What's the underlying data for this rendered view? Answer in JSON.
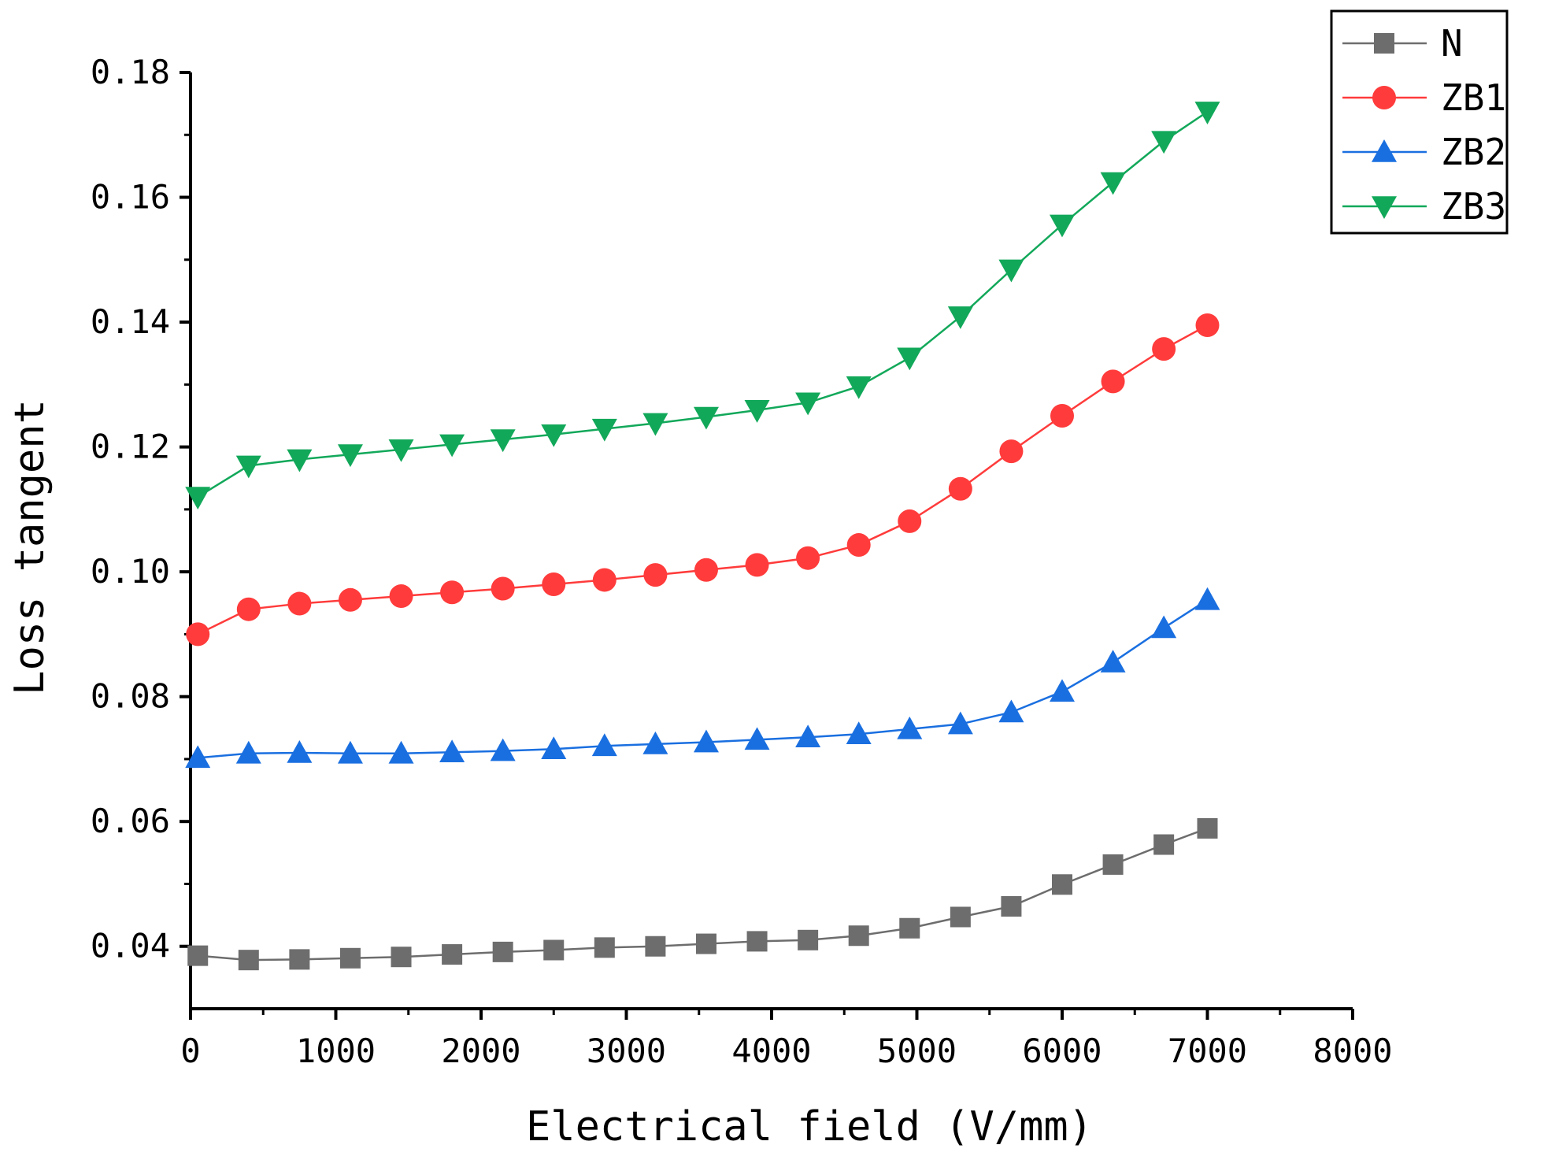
{
  "chart_data": {
    "type": "line",
    "title": "",
    "xlabel": "Electrical field (V/mm)",
    "ylabel": "Loss tangent",
    "xlim": [
      0,
      8000
    ],
    "ylim": [
      0.03,
      0.18
    ],
    "xticks": [
      0,
      1000,
      2000,
      3000,
      4000,
      5000,
      6000,
      7000,
      8000
    ],
    "xtick_labels": [
      "0",
      "1000",
      "2000",
      "3000",
      "4000",
      "5000",
      "6000",
      "7000",
      "8000"
    ],
    "yticks": [
      0.04,
      0.06,
      0.08,
      0.1,
      0.12,
      0.14,
      0.16,
      0.18
    ],
    "ytick_labels": [
      "0.04",
      "0.06",
      "0.08",
      "0.10",
      "0.12",
      "0.14",
      "0.16",
      "0.18"
    ],
    "grid": false,
    "legend_position": "top-right",
    "x": [
      50,
      400,
      750,
      1100,
      1450,
      1800,
      2150,
      2500,
      2850,
      3200,
      3550,
      3900,
      4250,
      4600,
      4950,
      5300,
      5650,
      6000,
      6350,
      6700,
      7000
    ],
    "series": [
      {
        "name": "N",
        "marker": "square",
        "color": "#6d6d6d",
        "values": [
          0.0385,
          0.0378,
          0.0379,
          0.0381,
          0.0383,
          0.0387,
          0.0391,
          0.0394,
          0.0398,
          0.04,
          0.0404,
          0.0408,
          0.041,
          0.0417,
          0.0429,
          0.0447,
          0.0464,
          0.0499,
          0.0531,
          0.0563,
          0.0589
        ]
      },
      {
        "name": "ZB1",
        "marker": "circle",
        "color": "#ff3b3b",
        "values": [
          0.09,
          0.094,
          0.0949,
          0.0955,
          0.0961,
          0.0967,
          0.0973,
          0.098,
          0.0987,
          0.0995,
          0.1003,
          0.1011,
          0.1022,
          0.1043,
          0.1081,
          0.1133,
          0.1193,
          0.125,
          0.1305,
          0.1357,
          0.1395
        ]
      },
      {
        "name": "ZB2",
        "marker": "triangle-up",
        "color": "#1a6fe0",
        "values": [
          0.0702,
          0.0709,
          0.071,
          0.0709,
          0.0709,
          0.0711,
          0.0713,
          0.0716,
          0.0721,
          0.0724,
          0.0727,
          0.0731,
          0.0735,
          0.074,
          0.0748,
          0.0756,
          0.0775,
          0.0808,
          0.0855,
          0.091,
          0.0955
        ]
      },
      {
        "name": "ZB3",
        "marker": "triangle-down",
        "color": "#12a85a",
        "values": [
          0.112,
          0.117,
          0.118,
          0.1188,
          0.1196,
          0.1204,
          0.1212,
          0.122,
          0.1229,
          0.1238,
          0.1248,
          0.1259,
          0.1271,
          0.1297,
          0.1343,
          0.1409,
          0.1484,
          0.1556,
          0.1624,
          0.169,
          0.1737
        ]
      }
    ]
  }
}
